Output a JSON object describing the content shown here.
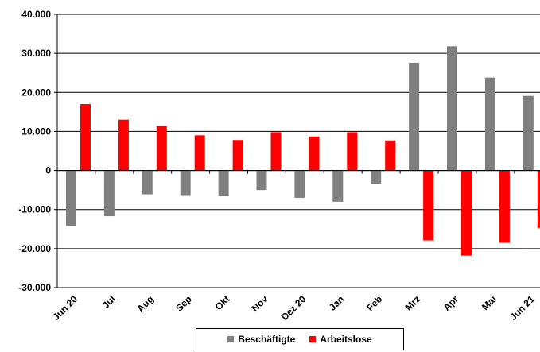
{
  "chart_data": {
    "type": "bar",
    "categories": [
      "Jun 20",
      "Jul",
      "Aug",
      "Sep",
      "Okt",
      "Nov",
      "Dez 20",
      "Jan",
      "Feb",
      "Mrz",
      "Apr",
      "Mai",
      "Jun 21"
    ],
    "series": [
      {
        "name": "Beschäftigte",
        "color": "#808080",
        "values": [
          -14200,
          -11700,
          -6100,
          -6500,
          -6600,
          -5000,
          -7000,
          -8000,
          -3400,
          27600,
          31800,
          23800,
          19100
        ]
      },
      {
        "name": "Arbeitslose",
        "color": "#ff0000",
        "values": [
          17000,
          13000,
          11400,
          9000,
          7800,
          9800,
          8700,
          9800,
          7700,
          -17900,
          -21800,
          -18500,
          -14700
        ]
      }
    ],
    "ylim": [
      -30000,
      40000
    ],
    "yticks": [
      40000,
      30000,
      20000,
      10000,
      0,
      -10000,
      -20000,
      -30000
    ],
    "ytick_labels": [
      "40.000",
      "30.000",
      "20.000",
      "10.000",
      "0",
      "-10.000",
      "-20.000",
      "-30.000"
    ],
    "title": "",
    "xlabel": "",
    "ylabel": "",
    "grid": true,
    "legend": "bottom"
  }
}
